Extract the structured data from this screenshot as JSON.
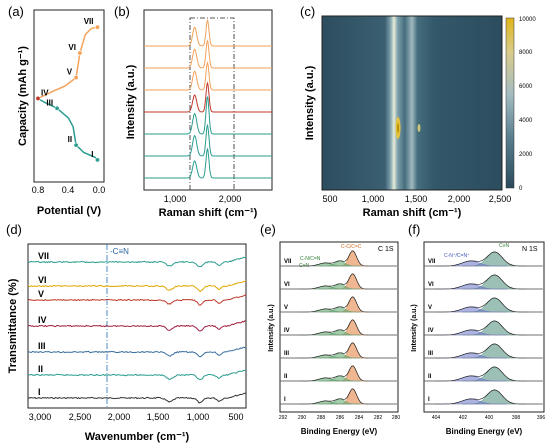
{
  "panels": {
    "a": {
      "letter": "(a)",
      "xlabel": "Potential (V)",
      "ylabel": "Capacity (mAh g⁻¹)",
      "xticks": [
        "0.8",
        "0.4",
        "0.0"
      ]
    },
    "b": {
      "letter": "(b)",
      "xlabel": "Raman shift (cm⁻¹)",
      "ylabel": "Intensity (a.u.)",
      "xticks": [
        "1,000",
        "2,000"
      ]
    },
    "c": {
      "letter": "(c)",
      "xlabel": "Raman shift (cm⁻¹)",
      "ylabel": "Intensity (a.u.)",
      "xticks": [
        "500",
        "1,000",
        "1,500",
        "2,000",
        "2,500"
      ],
      "colorbar_ticks": [
        "0",
        "2000",
        "4000",
        "6000",
        "8000",
        "10000"
      ]
    },
    "d": {
      "letter": "(d)",
      "xlabel": "Wavenumber (cm⁻¹)",
      "ylabel": "Transmittance (%)",
      "xticks": [
        "3,000",
        "2,500",
        "2,000",
        "1,500",
        "1,000",
        "500"
      ],
      "annotation": "-C≡N"
    },
    "e": {
      "letter": "(e)",
      "xlabel": "Binding Energy (eV)",
      "ylabel": "Intensity (a.u.)",
      "corner": "C 1S",
      "xticks": [
        "292",
        "290",
        "288",
        "286",
        "284",
        "282",
        "280"
      ],
      "ann1": "C-N/C=N",
      "ann2": "C-C/C=C",
      "ann3": "C≡N"
    },
    "f": {
      "letter": "(f)",
      "xlabel": "Binding Energy (eV)",
      "ylabel": "Intensity (a.u.)",
      "corner": "N 1S",
      "xticks": [
        "404",
        "402",
        "400",
        "398",
        "396"
      ],
      "ann1": "C-N⁺/C=N⁺",
      "ann2": "C≡N"
    }
  },
  "states": [
    "I",
    "II",
    "III",
    "IV",
    "V",
    "VI",
    "VII"
  ],
  "colors": {
    "discharge": "#2a9d8f",
    "charge": "#f4a259",
    "pivot": "#c0392b",
    "ftir_VII": "#2a9d8f",
    "ftir_VI": "#e0a800",
    "ftir_V": "#c0392b",
    "ftir_IV": "#a02040",
    "ftir_III": "#3a6fa0",
    "ftir_II": "#2a9d8f",
    "ftir_I": "#333333"
  },
  "chart_data": [
    {
      "panel": "a",
      "type": "line",
      "xlabel": "Potential (V)",
      "ylabel": "Capacity (mAh g⁻¹)",
      "x_reversed": true,
      "series": [
        {
          "values": [
            [
              0.02,
              0.18
            ],
            [
              0.05,
              0.2
            ],
            [
              0.2,
              0.24
            ],
            [
              0.3,
              0.3
            ],
            [
              0.34,
              0.45
            ],
            [
              0.4,
              0.52
            ],
            [
              0.55,
              0.6
            ],
            [
              0.72,
              0.65
            ],
            [
              0.8,
              0.68
            ]
          ]
        },
        {
          "values": [
            [
              0.8,
              0.68
            ],
            [
              0.6,
              0.74
            ],
            [
              0.45,
              0.78
            ],
            [
              0.3,
              0.85
            ],
            [
              0.25,
              1.05
            ],
            [
              0.18,
              1.2
            ],
            [
              0.1,
              1.25
            ],
            [
              0.02,
              1.26
            ]
          ]
        }
      ],
      "labeled_points": [
        {
          "label": "I",
          "x": 0.02,
          "y": 0.18
        },
        {
          "label": "II",
          "x": 0.3,
          "y": 0.3
        },
        {
          "label": "III",
          "x": 0.55,
          "y": 0.6
        },
        {
          "label": "IV",
          "x": 0.8,
          "y": 0.68
        },
        {
          "label": "V",
          "x": 0.3,
          "y": 0.85
        },
        {
          "label": "VI",
          "x": 0.25,
          "y": 1.05
        },
        {
          "label": "VII",
          "x": 0.02,
          "y": 1.26
        }
      ]
    },
    {
      "panel": "b",
      "type": "line",
      "xlabel": "Raman shift (cm⁻¹)",
      "ylabel": "Intensity (a.u.)",
      "xlim": [
        400,
        2800
      ],
      "peaks": [
        1350,
        1590
      ],
      "series": [
        {
          "name": "I",
          "values": [
            0.1,
            0.17
          ]
        },
        {
          "name": "II",
          "values": [
            0.12,
            0.18
          ]
        },
        {
          "name": "III",
          "values": [
            0.12,
            0.22
          ]
        },
        {
          "name": "IV",
          "values": [
            0.1,
            0.17
          ]
        },
        {
          "name": "V",
          "values": [
            0.11,
            0.16
          ]
        },
        {
          "name": "VI",
          "values": [
            0.11,
            0.16
          ]
        },
        {
          "name": "VII",
          "values": [
            0.11,
            0.15
          ]
        }
      ]
    },
    {
      "panel": "c",
      "type": "heatmap",
      "xlabel": "Raman shift (cm⁻¹)",
      "ylabel": "Intensity (a.u.)",
      "xlim": [
        400,
        2500
      ],
      "zlim": [
        0,
        10000
      ],
      "peaks": [
        {
          "x": 1350,
          "z": 10000
        },
        {
          "x": 1590,
          "z": 6500
        }
      ]
    },
    {
      "panel": "d",
      "type": "line",
      "xlabel": "Wavenumber (cm⁻¹)",
      "ylabel": "Transmittance (%)",
      "xlim": [
        3300,
        450
      ],
      "annotation_x": 2200,
      "series": [
        {
          "name": "I"
        },
        {
          "name": "II"
        },
        {
          "name": "III"
        },
        {
          "name": "IV"
        },
        {
          "name": "V"
        },
        {
          "name": "VI"
        },
        {
          "name": "VII"
        }
      ]
    },
    {
      "panel": "e",
      "type": "line",
      "xlabel": "Binding Energy (eV)",
      "ylabel": "Intensity (a.u.)",
      "xlim": [
        292,
        280
      ],
      "components": [
        {
          "name": "C-N/C=N",
          "center": 285.9
        },
        {
          "name": "C-C/C=C",
          "center": 284.6
        },
        {
          "name": "C≡N",
          "center": 287.4
        }
      ],
      "series": [
        {
          "name": "I"
        },
        {
          "name": "II"
        },
        {
          "name": "III"
        },
        {
          "name": "IV"
        },
        {
          "name": "V"
        },
        {
          "name": "VI"
        },
        {
          "name": "VII"
        }
      ]
    },
    {
      "panel": "f",
      "type": "line",
      "xlabel": "Binding Energy (eV)",
      "ylabel": "Intensity (a.u.)",
      "xlim": [
        405,
        396
      ],
      "components": [
        {
          "name": "C≡N",
          "center": 399.7
        },
        {
          "name": "C-N⁺/C=N⁺",
          "center": 401.5
        }
      ],
      "series": [
        {
          "name": "I"
        },
        {
          "name": "II"
        },
        {
          "name": "III"
        },
        {
          "name": "IV"
        },
        {
          "name": "V"
        },
        {
          "name": "VI"
        },
        {
          "name": "VII"
        }
      ]
    }
  ]
}
